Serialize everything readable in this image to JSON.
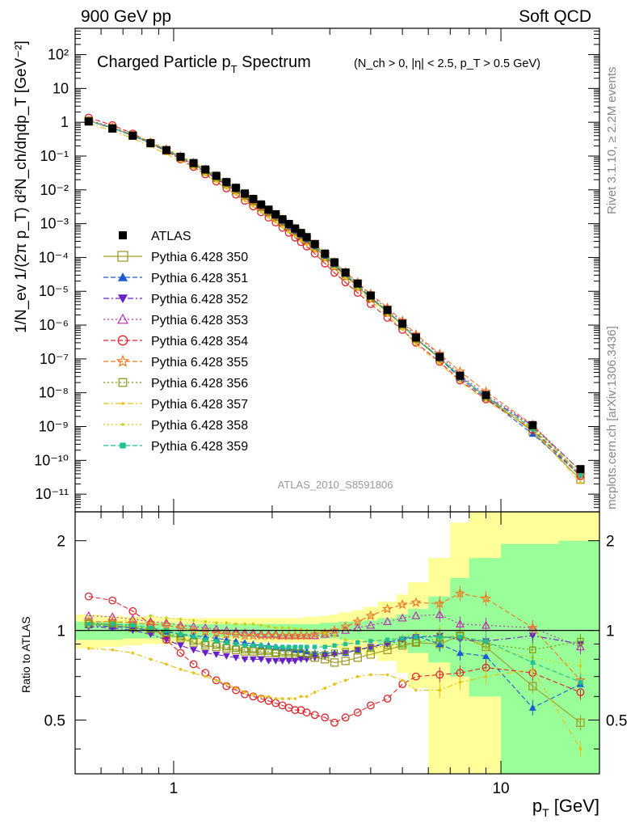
{
  "header": {
    "energy_label": "900 GeV pp",
    "category_label": "Soft QCD"
  },
  "side_labels": {
    "rivet": "Rivet 3.1.10, ≥ 2.2M events",
    "source": "mcplots.cern.ch [arXiv:1306.3436]"
  },
  "analysis_id": "ATLAS_2010_S8591806",
  "colors": {
    "green_band": "#99ff99",
    "yellow_band": "#ffff99",
    "data": "#000000",
    "s350": "#a09a28",
    "s351": "#1c5cd0",
    "s352": "#6a20c8",
    "s353": "#b833b0",
    "s354": "#e0222a",
    "s355": "#f07824",
    "s356": "#7a9a10",
    "s357": "#e8c010",
    "s358": "#c8d010",
    "s359": "#20c090"
  },
  "chart_data": [
    {
      "type": "scatter",
      "panel": "main",
      "title": "Charged Particle p_T Spectrum",
      "title_main": "Charged Particle p",
      "title_sub": "T",
      "title_main2": " Spectrum",
      "title_cuts": "(N_ch > 0, |η| < 2.5, p_T > 0.5 GeV)",
      "ylabel": "1/N_ev 1/(2π p_T) d²N_ch/dηdp_T [GeV⁻²]",
      "x_scale": "log",
      "y_scale": "log",
      "xlim": [
        0.5,
        20
      ],
      "ylim": [
        3e-12,
        600
      ],
      "y_tick_labels": [
        "10⁻¹¹",
        "10⁻¹⁰",
        "10⁻⁹",
        "10⁻⁸",
        "10⁻⁷",
        "10⁻⁶",
        "10⁻⁵",
        "10⁻⁴",
        "10⁻³",
        "10⁻²",
        "10⁻¹",
        "1",
        "10",
        "10²"
      ],
      "y_tick_values": [
        1e-11,
        1e-10,
        1e-09,
        1e-08,
        1e-07,
        1e-06,
        1e-05,
        0.0001,
        0.001,
        0.01,
        0.1,
        1,
        10,
        100
      ],
      "legend_position": "middle-left",
      "x": [
        0.55,
        0.65,
        0.75,
        0.85,
        0.95,
        1.05,
        1.15,
        1.25,
        1.35,
        1.45,
        1.55,
        1.65,
        1.75,
        1.85,
        1.95,
        2.05,
        2.15,
        2.25,
        2.35,
        2.45,
        2.55,
        2.7,
        2.9,
        3.1,
        3.35,
        3.65,
        4.0,
        4.5,
        5.0,
        5.5,
        6.5,
        7.5,
        9.0,
        12.5,
        17.5
      ],
      "series": [
        {
          "name": "ATLAS",
          "key": "data",
          "marker": "filled-square",
          "values": [
            1.05,
            0.65,
            0.4,
            0.24,
            0.15,
            0.095,
            0.062,
            0.04,
            0.026,
            0.017,
            0.0115,
            0.0078,
            0.0054,
            0.0037,
            0.0026,
            0.0019,
            0.00135,
            0.00098,
            0.00072,
            0.00053,
            0.0004,
            0.00025,
            0.00013,
            7.2e-05,
            3.6e-05,
            1.7e-05,
            7.5e-06,
            2.8e-06,
            1.1e-06,
            4.3e-07,
            1.15e-07,
            3.2e-08,
            8.5e-09,
            1.1e-09,
            5.5e-11
          ]
        },
        {
          "name": "Pythia 6.428 350",
          "key": "s350",
          "marker": "open-square",
          "line": "solid"
        },
        {
          "name": "Pythia 6.428 351",
          "key": "s351",
          "marker": "filled-triangle-up",
          "line": "dashed"
        },
        {
          "name": "Pythia 6.428 352",
          "key": "s352",
          "marker": "filled-triangle-down",
          "line": "dashdot"
        },
        {
          "name": "Pythia 6.428 353",
          "key": "s353",
          "marker": "open-triangle-up",
          "line": "dotted"
        },
        {
          "name": "Pythia 6.428 354",
          "key": "s354",
          "marker": "open-circle",
          "line": "dashed"
        },
        {
          "name": "Pythia 6.428 355",
          "key": "s355",
          "marker": "open-star",
          "line": "dashed"
        },
        {
          "name": "Pythia 6.428 356",
          "key": "s356",
          "marker": "open-square-small",
          "line": "dotted"
        },
        {
          "name": "Pythia 6.428 357",
          "key": "s357",
          "marker": "dot",
          "line": "dashdot"
        },
        {
          "name": "Pythia 6.428 358",
          "key": "s358",
          "marker": "dot",
          "line": "dotted"
        },
        {
          "name": "Pythia 6.428 359",
          "key": "s359",
          "marker": "filled-square-small",
          "line": "dashed"
        }
      ]
    },
    {
      "type": "line",
      "panel": "ratio",
      "ylabel": "Ratio to ATLAS",
      "xlabel": "p_T [GeV]",
      "xlabel_main": "p",
      "xlabel_sub": "T",
      "xlabel_unit": " [GeV]",
      "x_scale": "log",
      "y_scale": "log",
      "xlim": [
        0.5,
        20
      ],
      "ylim": [
        0.33,
        2.5
      ],
      "y_tick_labels": [
        "0.5",
        "1",
        "2"
      ],
      "y_tick_values": [
        0.5,
        1,
        2
      ],
      "x_tick_labels": [
        "1",
        "10"
      ],
      "x_tick_values": [
        1,
        10
      ],
      "x": [
        0.55,
        0.65,
        0.75,
        0.85,
        0.95,
        1.05,
        1.15,
        1.25,
        1.35,
        1.45,
        1.55,
        1.65,
        1.75,
        1.85,
        1.95,
        2.05,
        2.15,
        2.25,
        2.35,
        2.45,
        2.55,
        2.7,
        2.9,
        3.1,
        3.35,
        3.65,
        4.0,
        4.5,
        5.0,
        5.5,
        6.5,
        7.5,
        9.0,
        12.5,
        17.5
      ],
      "bands": {
        "x_edges": [
          0.5,
          0.6,
          0.7,
          0.8,
          0.9,
          1.0,
          1.1,
          1.2,
          1.3,
          1.4,
          1.5,
          1.6,
          1.7,
          1.8,
          1.9,
          2.0,
          2.1,
          2.2,
          2.3,
          2.4,
          2.5,
          2.6,
          2.8,
          3.0,
          3.2,
          3.5,
          3.8,
          4.2,
          4.8,
          5.2,
          6.0,
          7.0,
          8.0,
          10.0,
          15.0,
          20.0
        ],
        "green_lo": [
          0.93,
          0.93,
          0.94,
          0.94,
          0.94,
          0.95,
          0.95,
          0.95,
          0.95,
          0.95,
          0.95,
          0.95,
          0.95,
          0.95,
          0.95,
          0.95,
          0.95,
          0.95,
          0.95,
          0.95,
          0.95,
          0.95,
          0.94,
          0.94,
          0.93,
          0.93,
          0.92,
          0.9,
          0.87,
          0.84,
          0.78,
          0.7,
          0.6,
          0.33,
          0.33
        ],
        "green_hi": [
          1.07,
          1.07,
          1.06,
          1.06,
          1.06,
          1.05,
          1.05,
          1.05,
          1.05,
          1.05,
          1.05,
          1.05,
          1.05,
          1.05,
          1.05,
          1.05,
          1.05,
          1.05,
          1.05,
          1.05,
          1.05,
          1.05,
          1.06,
          1.06,
          1.07,
          1.07,
          1.08,
          1.1,
          1.13,
          1.18,
          1.3,
          1.5,
          1.75,
          1.95,
          2.0
        ],
        "yellow_lo": [
          0.87,
          0.88,
          0.89,
          0.9,
          0.9,
          0.91,
          0.91,
          0.91,
          0.91,
          0.91,
          0.91,
          0.91,
          0.91,
          0.91,
          0.91,
          0.91,
          0.91,
          0.91,
          0.91,
          0.91,
          0.9,
          0.9,
          0.88,
          0.87,
          0.86,
          0.85,
          0.82,
          0.79,
          0.72,
          0.64,
          0.33,
          0.33,
          0.33,
          0.33,
          0.33
        ],
        "yellow_hi": [
          1.13,
          1.12,
          1.11,
          1.11,
          1.1,
          1.1,
          1.1,
          1.1,
          1.1,
          1.1,
          1.1,
          1.1,
          1.1,
          1.1,
          1.1,
          1.1,
          1.1,
          1.1,
          1.1,
          1.1,
          1.11,
          1.11,
          1.12,
          1.13,
          1.15,
          1.17,
          1.2,
          1.25,
          1.32,
          1.45,
          1.75,
          2.3,
          2.5,
          2.5,
          2.5
        ]
      },
      "series": [
        {
          "key": "s350",
          "values": [
            1.05,
            1.04,
            1.02,
            1.0,
            0.97,
            0.94,
            0.91,
            0.89,
            0.88,
            0.87,
            0.86,
            0.85,
            0.85,
            0.84,
            0.84,
            0.84,
            0.83,
            0.83,
            0.83,
            0.82,
            0.82,
            0.81,
            0.8,
            0.78,
            0.79,
            0.81,
            0.83,
            0.86,
            0.89,
            0.91,
            0.9,
            0.96,
            0.88,
            0.65,
            0.49
          ]
        },
        {
          "key": "s351",
          "values": [
            1.04,
            1.03,
            1.02,
            1.0,
            0.99,
            0.97,
            0.96,
            0.95,
            0.94,
            0.93,
            0.92,
            0.91,
            0.9,
            0.89,
            0.89,
            0.88,
            0.87,
            0.87,
            0.86,
            0.86,
            0.85,
            0.84,
            0.84,
            0.84,
            0.84,
            0.86,
            0.88,
            0.91,
            0.94,
            0.96,
            0.9,
            0.84,
            0.82,
            0.55,
            0.66
          ]
        },
        {
          "key": "s352",
          "values": [
            1.03,
            1.02,
            1.0,
            0.97,
            0.93,
            0.89,
            0.86,
            0.84,
            0.83,
            0.82,
            0.81,
            0.8,
            0.8,
            0.8,
            0.79,
            0.79,
            0.79,
            0.79,
            0.79,
            0.8,
            0.8,
            0.81,
            0.82,
            0.83,
            0.84,
            0.86,
            0.88,
            0.9,
            0.93,
            0.95,
            0.96,
            0.93,
            0.92,
            0.96,
            0.9
          ]
        },
        {
          "key": "s353",
          "values": [
            1.12,
            1.11,
            1.09,
            1.07,
            1.06,
            1.04,
            1.03,
            1.02,
            1.01,
            1.0,
            0.99,
            0.98,
            0.98,
            0.97,
            0.97,
            0.97,
            0.96,
            0.96,
            0.96,
            0.96,
            0.96,
            0.96,
            0.97,
            0.98,
            1.0,
            1.02,
            1.04,
            1.07,
            1.1,
            1.12,
            1.13,
            1.05,
            1.04,
            1.02,
            0.88
          ]
        },
        {
          "key": "s354",
          "values": [
            1.3,
            1.26,
            1.16,
            1.05,
            0.93,
            0.84,
            0.77,
            0.72,
            0.68,
            0.65,
            0.63,
            0.61,
            0.6,
            0.59,
            0.58,
            0.57,
            0.56,
            0.55,
            0.54,
            0.54,
            0.53,
            0.52,
            0.51,
            0.49,
            0.51,
            0.53,
            0.56,
            0.59,
            0.66,
            0.7,
            0.71,
            0.72,
            0.75,
            0.72,
            0.62
          ]
        },
        {
          "key": "s355",
          "values": [
            1.07,
            1.07,
            1.06,
            1.05,
            1.04,
            1.02,
            1.0,
            0.99,
            0.98,
            0.97,
            0.97,
            0.96,
            0.96,
            0.96,
            0.96,
            0.96,
            0.96,
            0.96,
            0.96,
            0.96,
            0.96,
            0.97,
            0.98,
            1.0,
            1.03,
            1.07,
            1.12,
            1.18,
            1.22,
            1.24,
            1.23,
            1.33,
            1.28,
            1.02,
            0.68
          ]
        },
        {
          "key": "s356",
          "values": [
            1.06,
            1.05,
            1.03,
            1.01,
            0.98,
            0.95,
            0.92,
            0.9,
            0.89,
            0.88,
            0.87,
            0.86,
            0.86,
            0.85,
            0.85,
            0.84,
            0.84,
            0.84,
            0.84,
            0.84,
            0.83,
            0.83,
            0.83,
            0.84,
            0.85,
            0.86,
            0.87,
            0.89,
            0.9,
            0.91,
            0.94,
            0.96,
            0.9,
            0.86,
            0.92
          ]
        },
        {
          "key": "s357",
          "values": [
            0.87,
            0.86,
            0.84,
            0.8,
            0.77,
            0.74,
            0.72,
            0.7,
            0.68,
            0.66,
            0.64,
            0.62,
            0.61,
            0.6,
            0.6,
            0.59,
            0.59,
            0.59,
            0.59,
            0.6,
            0.6,
            0.62,
            0.64,
            0.66,
            0.68,
            0.7,
            0.71,
            0.71,
            0.68,
            0.63,
            0.63,
            0.67,
            0.7,
            0.74,
            0.4
          ]
        },
        {
          "key": "s358",
          "values": [
            1.03,
            1.06,
            1.09,
            1.12,
            1.1,
            1.09,
            1.08,
            1.07,
            1.06,
            1.06,
            1.05,
            1.05,
            1.05,
            1.04,
            1.03,
            1.02,
            1.02,
            1.02,
            1.01,
            1.01,
            1.0,
            1.0,
            0.98,
            0.96,
            0.93,
            0.92,
            0.92,
            0.93,
            0.95,
            0.98,
            0.98,
            0.95,
            0.88,
            0.81,
            0.76
          ]
        },
        {
          "key": "s359",
          "values": [
            1.05,
            1.05,
            1.04,
            1.02,
            1.0,
            0.97,
            0.95,
            0.93,
            0.92,
            0.91,
            0.9,
            0.89,
            0.89,
            0.89,
            0.88,
            0.88,
            0.88,
            0.88,
            0.88,
            0.88,
            0.88,
            0.88,
            0.88,
            0.89,
            0.9,
            0.91,
            0.92,
            0.93,
            0.94,
            0.95,
            0.95,
            0.95,
            0.92,
            0.78,
            0.67
          ]
        }
      ]
    }
  ]
}
